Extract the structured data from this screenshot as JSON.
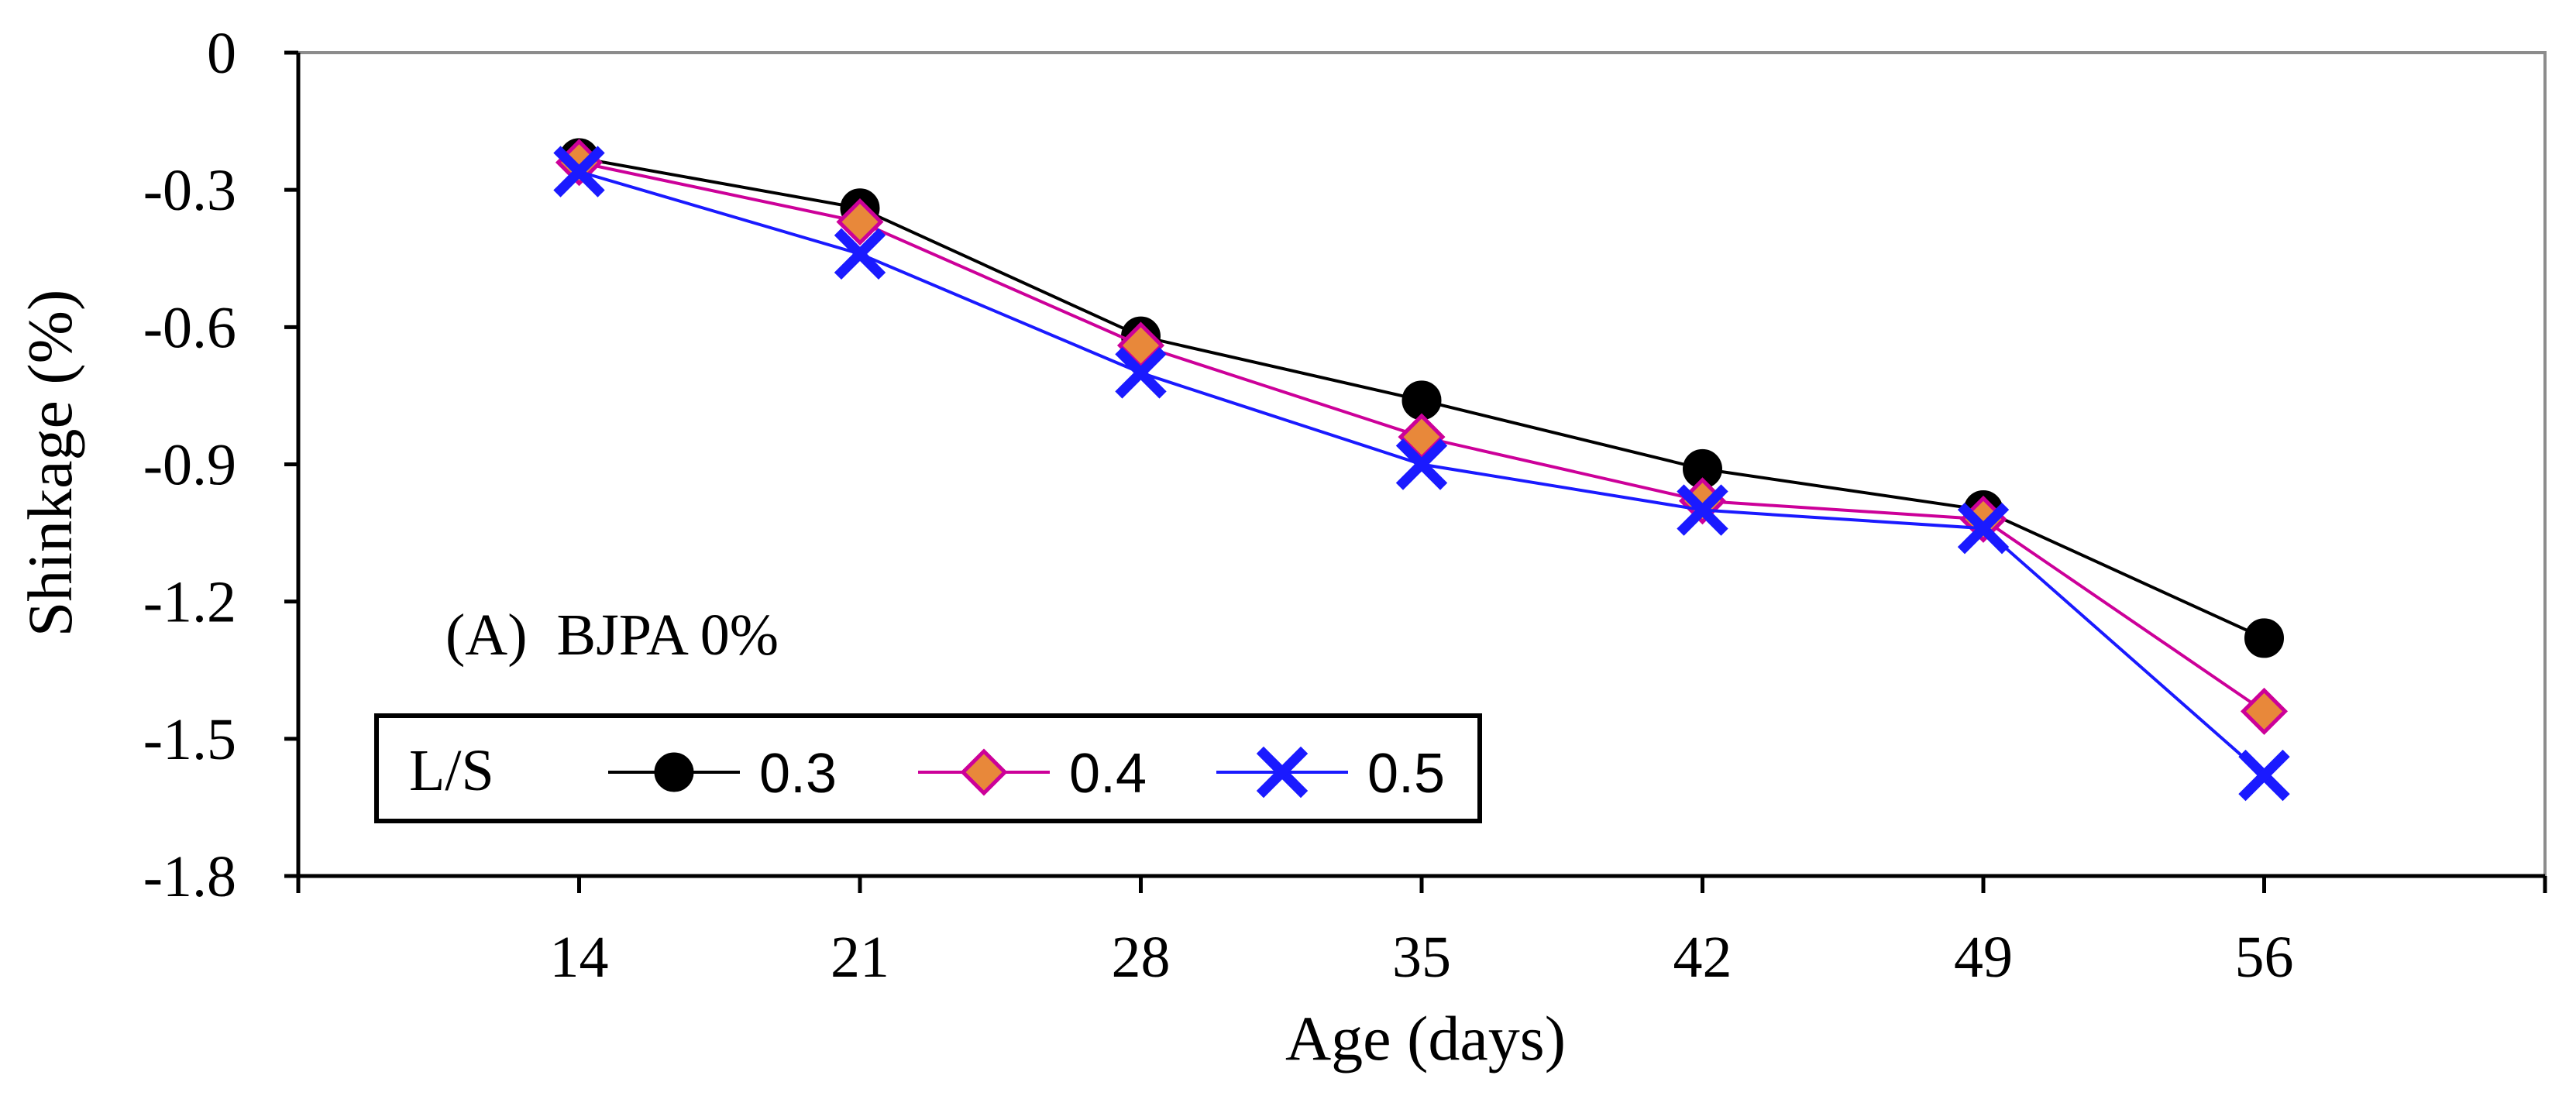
{
  "chart_data": {
    "type": "line",
    "x": [
      14,
      21,
      28,
      35,
      42,
      49,
      56
    ],
    "xlabel": "Age (days)",
    "ylabel": "Shinkage (%)",
    "ylim": [
      -1.8,
      0
    ],
    "yticks": [
      "0",
      "-0.3",
      "-0.6",
      "-0.9",
      "-1.2",
      "-1.5",
      "-1.8"
    ],
    "xticks": [
      "14",
      "21",
      "28",
      "35",
      "42",
      "49",
      "56"
    ],
    "grid": false,
    "annotation": "(A)  BJPA 0%",
    "legend": {
      "placement": "bottom-left",
      "title": "L/S"
    },
    "series": [
      {
        "name": "0.3",
        "marker": "circle",
        "color": "#000000",
        "marker_fill": "#000000",
        "values": [
          -0.23,
          -0.34,
          -0.62,
          -0.76,
          -0.91,
          -1.0,
          -1.28
        ]
      },
      {
        "name": "0.4",
        "marker": "diamond",
        "color": "#cc0099",
        "marker_fill": "#e8883a",
        "values": [
          -0.24,
          -0.37,
          -0.64,
          -0.84,
          -0.98,
          -1.02,
          -1.44
        ]
      },
      {
        "name": "0.5",
        "marker": "x",
        "color": "#1a1aff",
        "marker_fill": "#1a1aff",
        "values": [
          -0.26,
          -0.44,
          -0.7,
          -0.9,
          -1.0,
          -1.04,
          -1.58
        ]
      }
    ]
  }
}
